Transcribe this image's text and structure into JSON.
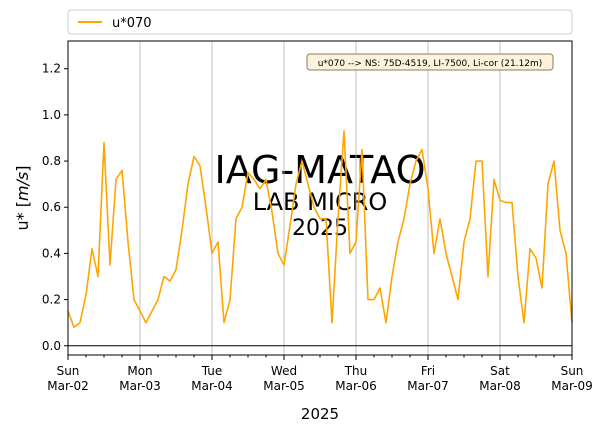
{
  "chart_data": {
    "type": "line",
    "xlabel": "2025",
    "ylabel": "u* [m/s]",
    "ylim": [
      -0.04,
      1.32
    ],
    "xlim": [
      "2025-03-02T00:00",
      "2025-03-09T00:00"
    ],
    "grid": "vertical at day ticks",
    "legend_placement": "above plot, left",
    "series": [
      {
        "name": "u*070",
        "color": "#ffa500",
        "x": [
          "2025-03-02T00:00",
          "2025-03-02T02:00",
          "2025-03-02T04:00",
          "2025-03-02T06:00",
          "2025-03-02T08:00",
          "2025-03-02T10:00",
          "2025-03-02T12:00",
          "2025-03-02T14:00",
          "2025-03-02T16:00",
          "2025-03-02T18:00",
          "2025-03-02T20:00",
          "2025-03-02T22:00",
          "2025-03-03T00:00",
          "2025-03-03T02:00",
          "2025-03-03T04:00",
          "2025-03-03T06:00",
          "2025-03-03T08:00",
          "2025-03-03T10:00",
          "2025-03-03T12:00",
          "2025-03-03T14:00",
          "2025-03-03T16:00",
          "2025-03-03T18:00",
          "2025-03-03T20:00",
          "2025-03-03T22:00",
          "2025-03-04T00:00",
          "2025-03-04T02:00",
          "2025-03-04T04:00",
          "2025-03-04T06:00",
          "2025-03-04T08:00",
          "2025-03-04T10:00",
          "2025-03-04T12:00",
          "2025-03-04T14:00",
          "2025-03-04T16:00",
          "2025-03-04T18:00",
          "2025-03-04T20:00",
          "2025-03-04T22:00",
          "2025-03-05T00:00",
          "2025-03-05T02:00",
          "2025-03-05T04:00",
          "2025-03-05T06:00",
          "2025-03-05T08:00",
          "2025-03-05T10:00",
          "2025-03-05T12:00",
          "2025-03-05T14:00",
          "2025-03-05T16:00",
          "2025-03-05T18:00",
          "2025-03-05T20:00",
          "2025-03-05T22:00",
          "2025-03-06T00:00",
          "2025-03-06T02:00",
          "2025-03-06T04:00",
          "2025-03-06T06:00",
          "2025-03-06T08:00",
          "2025-03-06T10:00",
          "2025-03-06T12:00",
          "2025-03-06T14:00",
          "2025-03-06T16:00",
          "2025-03-06T18:00",
          "2025-03-06T20:00",
          "2025-03-06T22:00",
          "2025-03-07T00:00",
          "2025-03-07T02:00",
          "2025-03-07T04:00",
          "2025-03-07T06:00",
          "2025-03-07T08:00",
          "2025-03-07T10:00",
          "2025-03-07T12:00",
          "2025-03-07T14:00",
          "2025-03-07T16:00",
          "2025-03-07T18:00",
          "2025-03-07T20:00",
          "2025-03-07T22:00",
          "2025-03-08T00:00",
          "2025-03-08T02:00",
          "2025-03-08T04:00",
          "2025-03-08T06:00",
          "2025-03-08T08:00",
          "2025-03-08T10:00",
          "2025-03-08T12:00",
          "2025-03-08T14:00",
          "2025-03-08T16:00",
          "2025-03-08T18:00",
          "2025-03-08T20:00",
          "2025-03-08T22:00",
          "2025-03-09T00:00"
        ],
        "y": [
          0.15,
          0.08,
          0.1,
          0.22,
          0.42,
          0.3,
          0.88,
          0.35,
          0.72,
          0.76,
          0.45,
          0.2,
          0.15,
          0.1,
          0.15,
          0.2,
          0.3,
          0.28,
          0.33,
          0.5,
          0.7,
          0.82,
          0.78,
          0.6,
          0.4,
          0.45,
          0.1,
          0.2,
          0.55,
          0.6,
          0.75,
          0.72,
          0.68,
          0.72,
          0.58,
          0.4,
          0.35,
          0.52,
          0.7,
          0.8,
          0.7,
          0.6,
          0.55,
          0.55,
          0.1,
          0.55,
          0.93,
          0.4,
          0.45,
          0.85,
          0.2,
          0.2,
          0.25,
          0.1,
          0.3,
          0.45,
          0.55,
          0.7,
          0.8,
          0.85,
          0.68,
          0.4,
          0.55,
          0.4,
          0.3,
          0.2,
          0.45,
          0.55,
          0.8,
          0.8,
          0.3,
          0.72,
          0.63,
          0.62,
          0.62,
          0.3,
          0.1,
          0.42,
          0.38,
          0.25,
          0.7,
          0.8,
          0.5,
          0.4,
          0.1
        ]
      }
    ],
    "x_ticks": [
      {
        "day": "Sun",
        "date": "Mar-02"
      },
      {
        "day": "Mon",
        "date": "Mar-03"
      },
      {
        "day": "Tue",
        "date": "Mar-04"
      },
      {
        "day": "Wed",
        "date": "Mar-05"
      },
      {
        "day": "Thu",
        "date": "Mar-06"
      },
      {
        "day": "Fri",
        "date": "Mar-07"
      },
      {
        "day": "Sat",
        "date": "Mar-08"
      },
      {
        "day": "Sun",
        "date": "Mar-09"
      }
    ],
    "y_ticks": [
      "0.0",
      "0.2",
      "0.4",
      "0.6",
      "0.8",
      "1.0",
      "1.2"
    ],
    "y_tick_values": [
      0,
      0.2,
      0.4,
      0.6,
      0.8,
      1.0,
      1.2
    ],
    "annotation": "u*070 --> NS: 75D-4519, LI-7500, Li-cor (21.12m)",
    "watermark": {
      "line1": "IAG-MATAO",
      "line2": "LAB MICRO",
      "line3": "2025"
    }
  },
  "legend": {
    "label": "u*070"
  },
  "axis": {
    "xlabel": "2025",
    "ylabel_main": "u* [",
    "ylabel_unit": "m/s",
    "ylabel_end": "]"
  }
}
